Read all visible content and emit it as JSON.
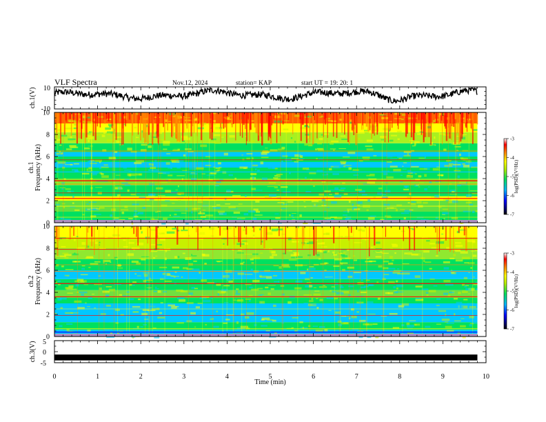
{
  "header": {
    "title": "VLF Spectra",
    "date": "Nov.12, 2024",
    "station": "station= KAP",
    "start_ut": "start  UT =   19: 20: 1"
  },
  "chart_data": [
    {
      "type": "line",
      "name": "ch1-waveform",
      "ylabel": "ch.1(V)",
      "ylim": [
        -10,
        10
      ],
      "yticks": [
        "10",
        "-10"
      ],
      "xlim": [
        0,
        10
      ],
      "x_end": 9.8
    },
    {
      "type": "heatmap",
      "name": "ch1-spectrogram",
      "ylabel": "ch.1\nFrequency (kHz)",
      "ylabel_lines": [
        "ch.1",
        "Frequency (kHz)"
      ],
      "ylim": [
        0,
        10
      ],
      "yticks": [
        "0",
        "2",
        "4",
        "6",
        "8",
        "10"
      ],
      "xlim": [
        0,
        10
      ],
      "x_end": 9.8,
      "colorbar": {
        "label": "log(PSD)(V²/Hz)",
        "range": [
          -7,
          -3
        ],
        "ticks": [
          "-3",
          "-4",
          "-5",
          "-6",
          "-7"
        ]
      }
    },
    {
      "type": "heatmap",
      "name": "ch2-spectrogram",
      "ylabel": "ch.2\nFrequency (kHz)",
      "ylabel_lines": [
        "ch.2",
        "Frequency (kHz)"
      ],
      "ylim": [
        0,
        10
      ],
      "yticks": [
        "0",
        "2",
        "4",
        "6",
        "8",
        "10"
      ],
      "xlim": [
        0,
        10
      ],
      "x_end": 9.8,
      "colorbar": {
        "label": "log(PSD)(V²/Hz)",
        "range": [
          -7,
          -3
        ],
        "ticks": [
          "-3",
          "-4",
          "-5",
          "-6",
          "-7"
        ]
      }
    },
    {
      "type": "line",
      "name": "ch3-waveform",
      "ylabel": "ch.3(V)",
      "ylim": [
        -5,
        5
      ],
      "yticks": [
        "5",
        "0",
        "-5"
      ],
      "xlim": [
        0,
        10
      ],
      "x_end": 9.8,
      "xlabel": "Time (min)",
      "xticks": [
        "0",
        "1",
        "2",
        "3",
        "4",
        "5",
        "6",
        "7",
        "8",
        "9",
        "10"
      ]
    }
  ],
  "colors": {
    "c1": "#000080",
    "c2": "#0000ff",
    "c3": "#00c8ff",
    "c4": "#00e060",
    "c5": "#c8f000",
    "c6": "#ffff00",
    "c7": "#ff9000",
    "c8": "#ff0000",
    "c9": "#ffffff"
  }
}
